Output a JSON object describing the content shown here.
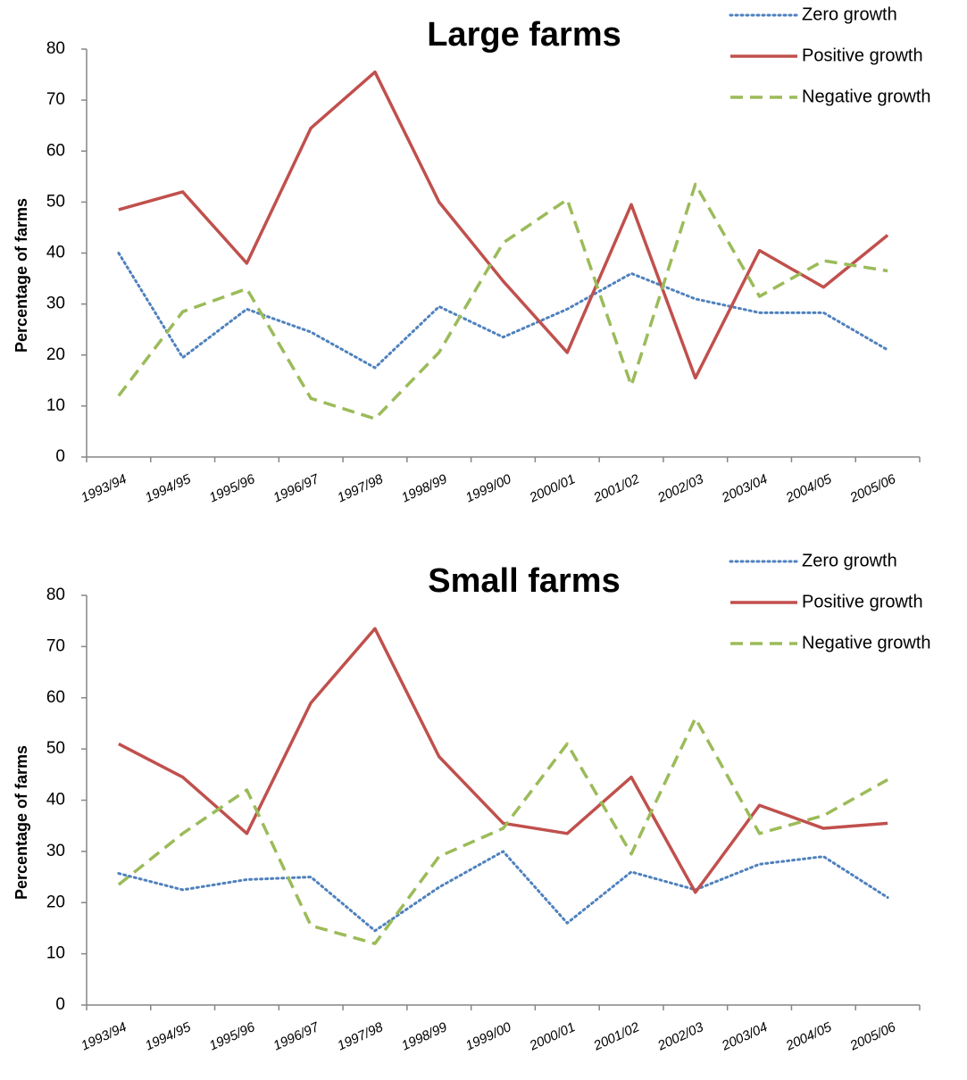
{
  "chart_data": [
    {
      "type": "line",
      "title": "Large farms",
      "y_label": "Percentage of farms",
      "categories": [
        "1993/94",
        "1994/95",
        "1995/96",
        "1996/97",
        "1997/98",
        "1998/99",
        "1999/00",
        "2000/01",
        "2001/02",
        "2002/03",
        "2003/04",
        "2004/05",
        "2005/06"
      ],
      "ylim": [
        0,
        80
      ],
      "yticks": [
        0,
        10,
        20,
        30,
        40,
        50,
        60,
        70,
        80
      ],
      "legend": "top-right",
      "series": [
        {
          "name": "Zero growth",
          "color": "#4f81bd",
          "style": "dotted",
          "values": [
            40,
            19.5,
            29,
            24.5,
            17.5,
            29.5,
            23.5,
            29,
            36,
            31,
            28.3,
            28.3,
            21
          ]
        },
        {
          "name": "Positive growth",
          "color": "#c0504d",
          "style": "solid",
          "values": [
            48.5,
            52,
            38,
            64.5,
            75.5,
            50,
            34.5,
            20.5,
            49.5,
            15.5,
            40.5,
            33.3,
            43.5
          ]
        },
        {
          "name": "Negative growth",
          "color": "#9bbb59",
          "style": "dashed",
          "values": [
            12,
            28.5,
            33,
            11.5,
            7.5,
            20.5,
            42,
            50.5,
            14,
            53.5,
            31.5,
            38.5,
            36.5
          ]
        }
      ]
    },
    {
      "type": "line",
      "title": "Small farms",
      "y_label": "Percentage of farms",
      "categories": [
        "1993/94",
        "1994/95",
        "1995/96",
        "1996/97",
        "1997/98",
        "1998/99",
        "1999/00",
        "2000/01",
        "2001/02",
        "2002/03",
        "2003/04",
        "2004/05",
        "2005/06"
      ],
      "ylim": [
        0,
        80
      ],
      "yticks": [
        0,
        10,
        20,
        30,
        40,
        50,
        60,
        70,
        80
      ],
      "legend": "top-right",
      "series": [
        {
          "name": "Zero growth",
          "color": "#4f81bd",
          "style": "dotted",
          "values": [
            25.7,
            22.5,
            24.5,
            25,
            14.5,
            23,
            30,
            16,
            26,
            22.5,
            27.5,
            29,
            21
          ]
        },
        {
          "name": "Positive growth",
          "color": "#c0504d",
          "style": "solid",
          "values": [
            51,
            44.5,
            33.5,
            59,
            73.5,
            48.5,
            35.5,
            33.5,
            44.5,
            22,
            39,
            34.5,
            35.5
          ]
        },
        {
          "name": "Negative growth",
          "color": "#9bbb59",
          "style": "dashed",
          "values": [
            23.5,
            33.5,
            42,
            15.5,
            12,
            29,
            34.5,
            51,
            29.5,
            56,
            33.5,
            37,
            44
          ]
        }
      ]
    }
  ]
}
